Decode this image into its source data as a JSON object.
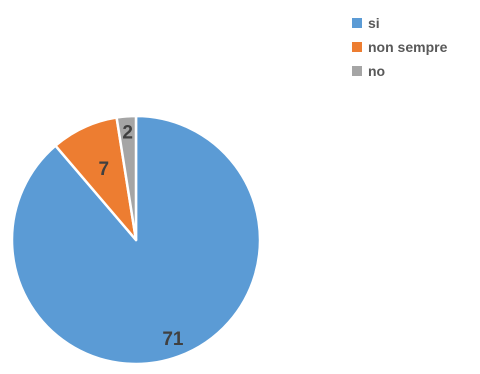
{
  "chart_data": {
    "type": "pie",
    "categories": [
      "si",
      "non sempre",
      "no"
    ],
    "values": [
      71,
      7,
      2
    ],
    "colors": [
      "#5b9bd5",
      "#ed7d31",
      "#a5a5a5"
    ],
    "data_labels": [
      "71",
      "7",
      "2"
    ],
    "start": "12 o'clock",
    "direction": "clockwise",
    "legend": {
      "position": "top-right"
    }
  }
}
